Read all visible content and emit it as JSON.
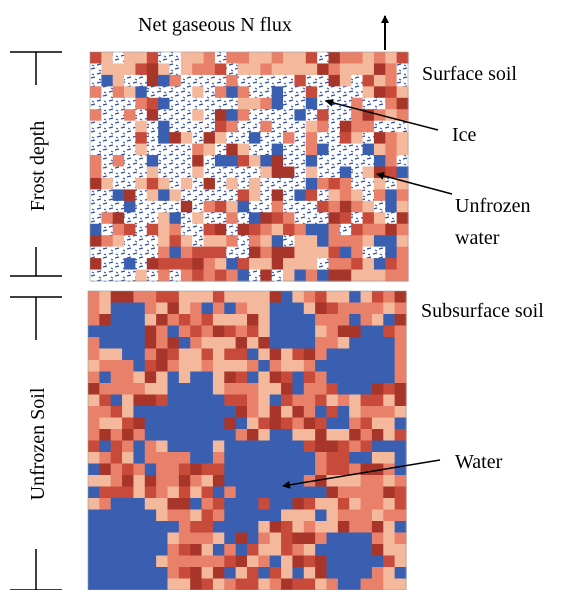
{
  "title": "Net gaseous N flux",
  "side_labels": {
    "frost_depth": "Frost depth",
    "unfrozen_soil": "Unfrozen Soil"
  },
  "panel_labels": {
    "surface": "Surface soil",
    "subsurface": "Subsurface soil"
  },
  "callouts": {
    "ice": "Ice",
    "unfrozen_water_line1": "Unfrozen",
    "unfrozen_water_line2": "water",
    "water": "Water"
  },
  "colors": {
    "soil_light": "#f4b89c",
    "soil_mid": "#e8806a",
    "soil_dark": "#c84a3a",
    "soil_darkest": "#a8352a",
    "water": "#3b5fb0",
    "ice_background": "#ffffff",
    "ice_dash": "#2f4fa8"
  },
  "arrow_direction": "up"
}
